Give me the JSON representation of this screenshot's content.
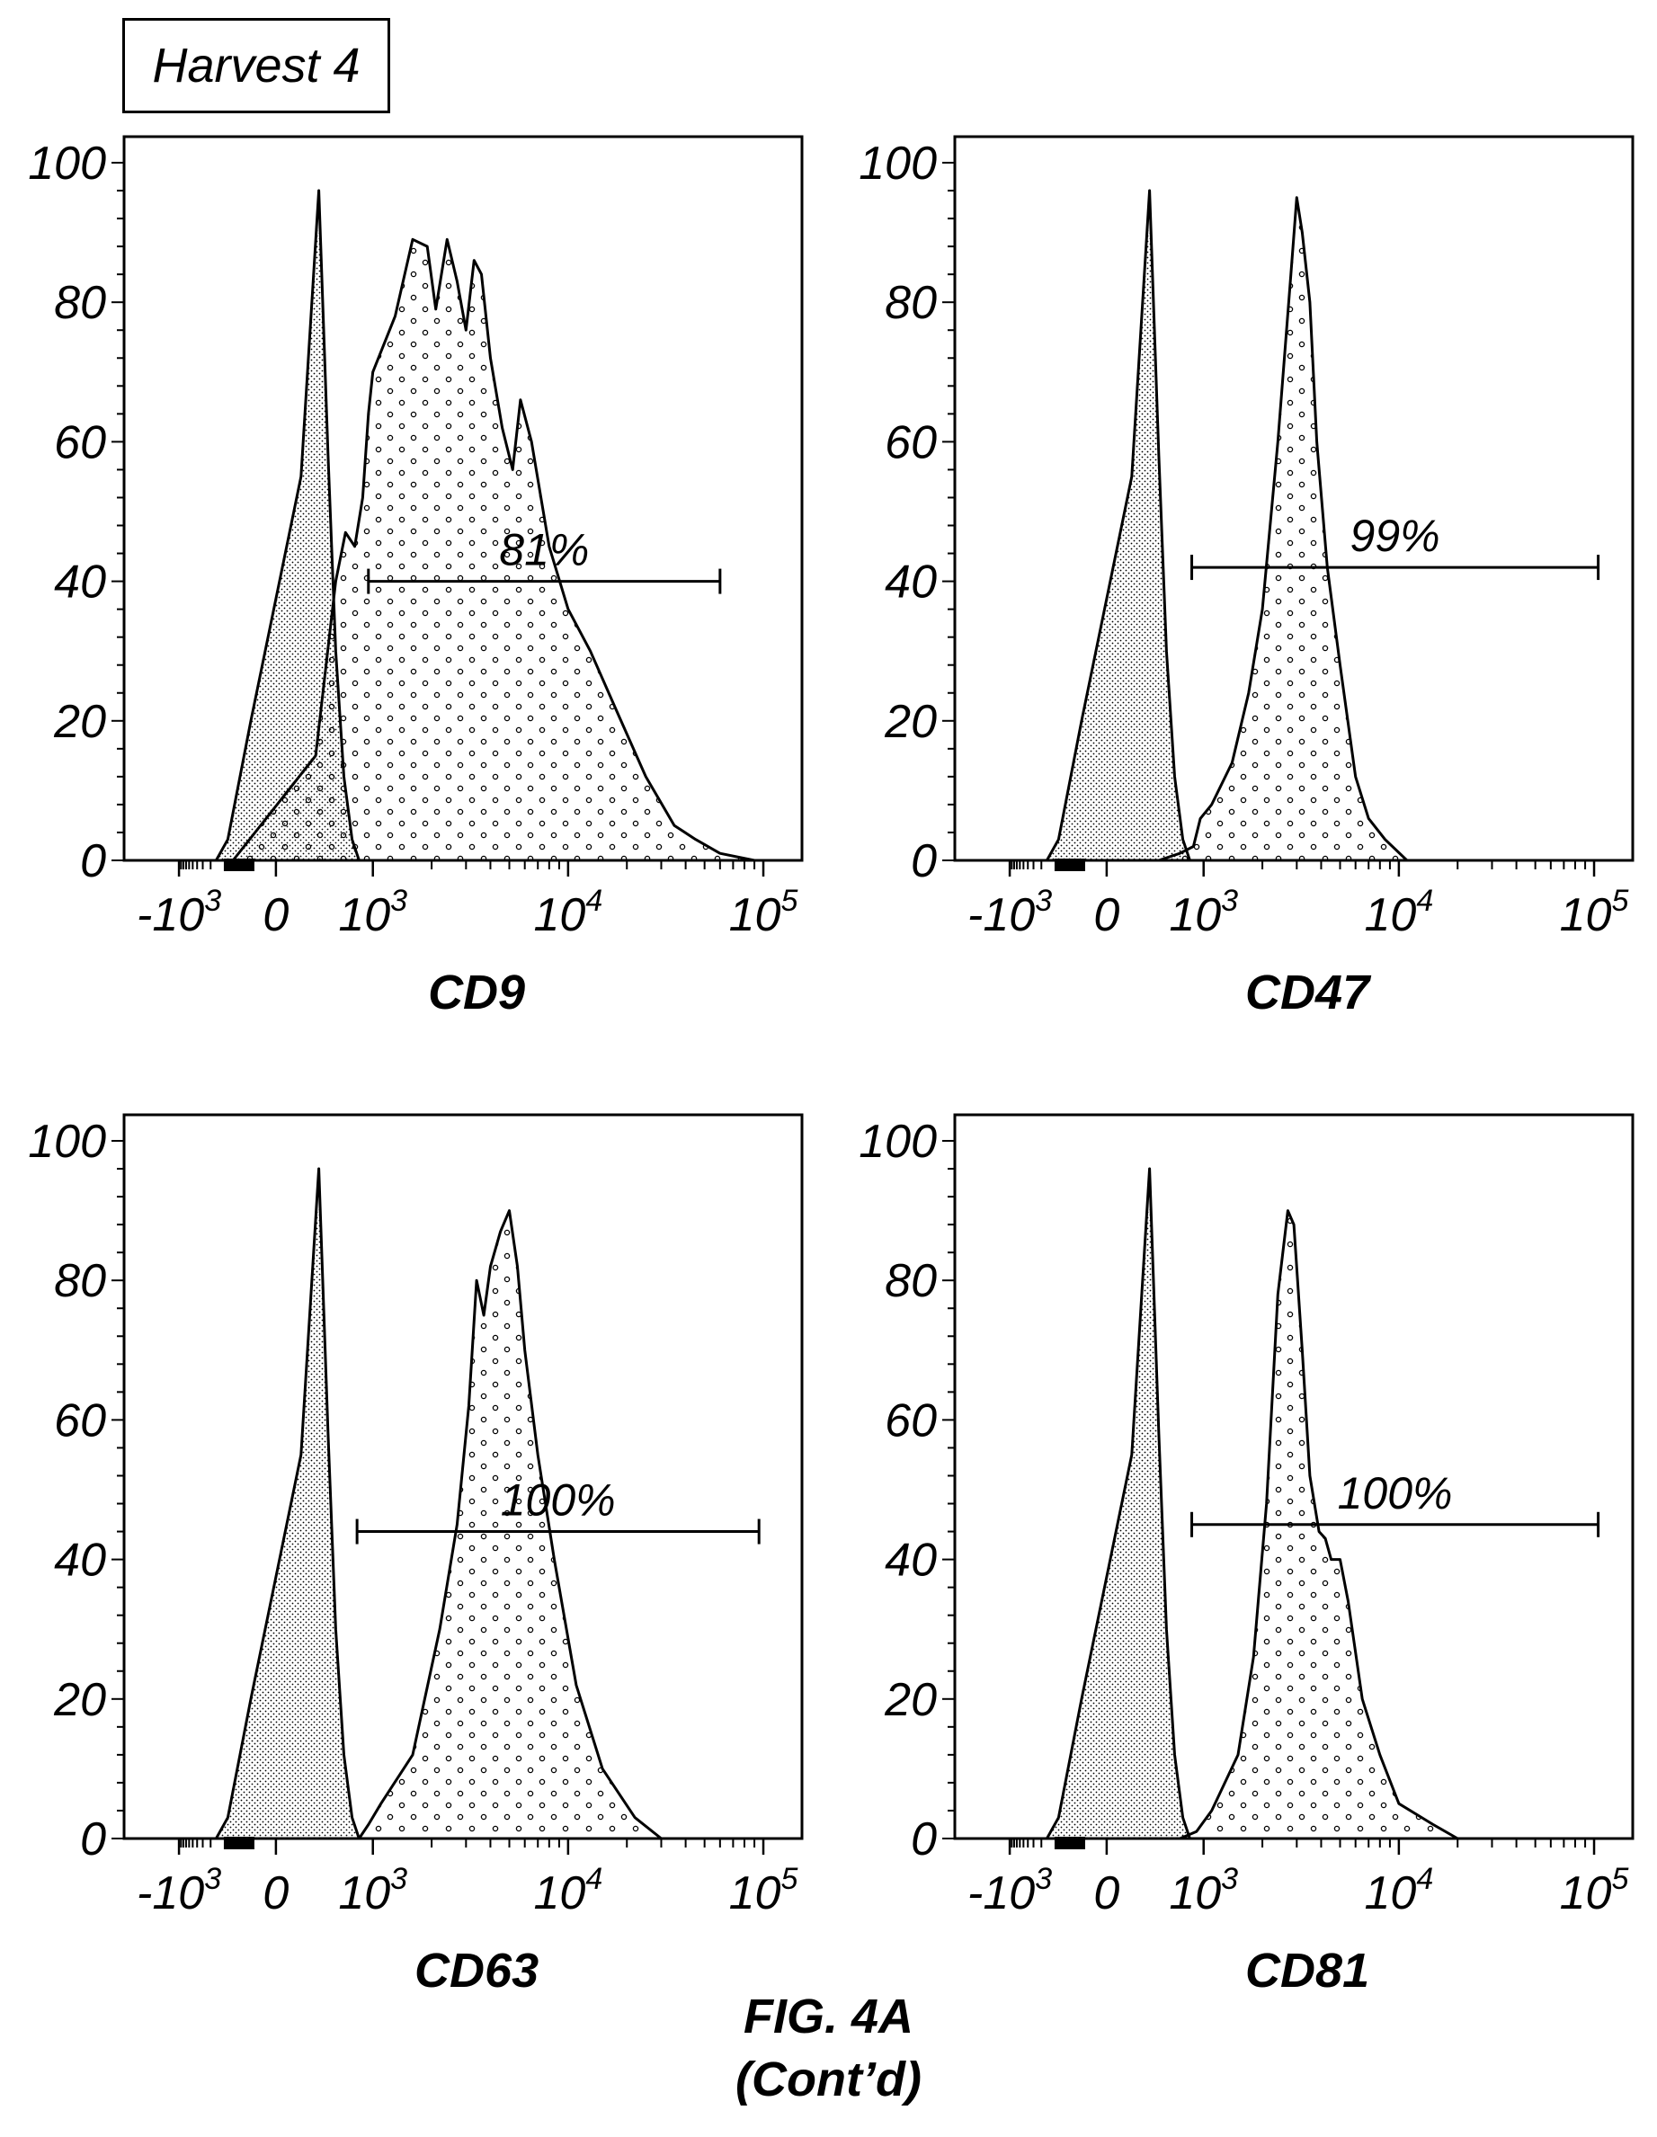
{
  "header": {
    "label": "Harvest 4"
  },
  "caption": {
    "line1": "FIG. 4A",
    "line2": "(Cont’d)"
  },
  "chart_data": [
    {
      "type": "area",
      "xlabel": "CD9",
      "x_scale": "biexponential",
      "x_tick_labels": [
        "-10^3",
        "0",
        "10^3",
        "10^4",
        "10^5"
      ],
      "y_tick_labels": [
        "0",
        "20",
        "40",
        "60",
        "80",
        "100"
      ],
      "ylim": [
        0,
        100
      ],
      "gate": {
        "label": "81%",
        "x_range": [
          800,
          60000
        ]
      },
      "series": [
        {
          "values": [
            [
              -150,
              0
            ],
            [
              -80,
              3
            ],
            [
              -20,
              20
            ],
            [
              20,
              55
            ],
            [
              60,
              96
            ],
            [
              100,
              58
            ],
            [
              150,
              30
            ],
            [
              230,
              12
            ],
            [
              350,
              3
            ],
            [
              500,
              0
            ]
          ]
        },
        {
          "values": [
            [
              -60,
              0
            ],
            [
              50,
              15
            ],
            [
              150,
              40
            ],
            [
              250,
              47
            ],
            [
              400,
              45
            ],
            [
              600,
              52
            ],
            [
              800,
              64
            ],
            [
              1000,
              70
            ],
            [
              1300,
              78
            ],
            [
              1600,
              89
            ],
            [
              1900,
              88
            ],
            [
              2100,
              79
            ],
            [
              2400,
              89
            ],
            [
              2700,
              83
            ],
            [
              3000,
              76
            ],
            [
              3300,
              86
            ],
            [
              3600,
              84
            ],
            [
              4000,
              72
            ],
            [
              4600,
              62
            ],
            [
              5200,
              56
            ],
            [
              5700,
              66
            ],
            [
              6500,
              60
            ],
            [
              8000,
              45
            ],
            [
              10000,
              36
            ],
            [
              13000,
              30
            ],
            [
              18000,
              21
            ],
            [
              25000,
              12
            ],
            [
              35000,
              5
            ],
            [
              45000,
              3
            ],
            [
              60000,
              1
            ],
            [
              90000,
              0
            ]
          ]
        }
      ]
    },
    {
      "type": "area",
      "xlabel": "CD47",
      "x_scale": "biexponential",
      "x_tick_labels": [
        "-10^3",
        "0",
        "10^3",
        "10^4",
        "10^5"
      ],
      "y_tick_labels": [
        "0",
        "20",
        "40",
        "60",
        "80",
        "100"
      ],
      "ylim": [
        0,
        100
      ],
      "gate": {
        "label": "99%",
        "x_range": [
          550,
          105000
        ]
      },
      "series": [
        {
          "values": [
            [
              -150,
              0
            ],
            [
              -80,
              3
            ],
            [
              -20,
              20
            ],
            [
              20,
              55
            ],
            [
              60,
              96
            ],
            [
              100,
              58
            ],
            [
              150,
              30
            ],
            [
              230,
              12
            ],
            [
              350,
              3
            ],
            [
              500,
              0
            ]
          ]
        },
        {
          "values": [
            [
              100,
              0
            ],
            [
              300,
              1
            ],
            [
              600,
              2
            ],
            [
              850,
              6
            ],
            [
              1100,
              8
            ],
            [
              1400,
              14
            ],
            [
              1700,
              24
            ],
            [
              2000,
              36
            ],
            [
              2400,
              60
            ],
            [
              2800,
              84
            ],
            [
              3000,
              95
            ],
            [
              3200,
              90
            ],
            [
              3500,
              80
            ],
            [
              3800,
              60
            ],
            [
              4300,
              42
            ],
            [
              5000,
              28
            ],
            [
              6000,
              12
            ],
            [
              7000,
              6
            ],
            [
              8500,
              3
            ],
            [
              11000,
              0
            ]
          ]
        }
      ]
    },
    {
      "type": "area",
      "xlabel": "CD63",
      "x_scale": "biexponential",
      "x_tick_labels": [
        "-10^3",
        "0",
        "10^3",
        "10^4",
        "10^5"
      ],
      "y_tick_labels": [
        "0",
        "20",
        "40",
        "60",
        "80",
        "100"
      ],
      "ylim": [
        0,
        100
      ],
      "gate": {
        "label": "100%",
        "x_range": [
          450,
          95000
        ]
      },
      "series": [
        {
          "values": [
            [
              -150,
              0
            ],
            [
              -80,
              3
            ],
            [
              -20,
              20
            ],
            [
              20,
              55
            ],
            [
              60,
              96
            ],
            [
              100,
              58
            ],
            [
              150,
              30
            ],
            [
              230,
              12
            ],
            [
              350,
              3
            ],
            [
              500,
              0
            ]
          ]
        },
        {
          "values": [
            [
              500,
              0
            ],
            [
              800,
              2
            ],
            [
              1100,
              5
            ],
            [
              1600,
              12
            ],
            [
              2200,
              30
            ],
            [
              2700,
              45
            ],
            [
              3100,
              62
            ],
            [
              3400,
              80
            ],
            [
              3700,
              75
            ],
            [
              4000,
              82
            ],
            [
              4500,
              87
            ],
            [
              5000,
              90
            ],
            [
              5500,
              82
            ],
            [
              6000,
              70
            ],
            [
              7000,
              55
            ],
            [
              8500,
              40
            ],
            [
              11000,
              22
            ],
            [
              15000,
              10
            ],
            [
              22000,
              3
            ],
            [
              30000,
              0
            ]
          ]
        }
      ]
    },
    {
      "type": "area",
      "xlabel": "CD81",
      "x_scale": "biexponential",
      "x_tick_labels": [
        "-10^3",
        "0",
        "10^3",
        "10^4",
        "10^5"
      ],
      "y_tick_labels": [
        "0",
        "20",
        "40",
        "60",
        "80",
        "100"
      ],
      "ylim": [
        0,
        100
      ],
      "gate": {
        "label": "100%",
        "x_range": [
          550,
          105000
        ]
      },
      "series": [
        {
          "values": [
            [
              -150,
              0
            ],
            [
              -80,
              3
            ],
            [
              -20,
              20
            ],
            [
              20,
              55
            ],
            [
              60,
              96
            ],
            [
              100,
              58
            ],
            [
              150,
              30
            ],
            [
              230,
              12
            ],
            [
              350,
              3
            ],
            [
              500,
              0
            ]
          ]
        },
        {
          "values": [
            [
              300,
              0
            ],
            [
              700,
              1
            ],
            [
              1100,
              4
            ],
            [
              1500,
              12
            ],
            [
              1800,
              26
            ],
            [
              2100,
              48
            ],
            [
              2400,
              78
            ],
            [
              2700,
              90
            ],
            [
              2900,
              88
            ],
            [
              3200,
              70
            ],
            [
              3500,
              52
            ],
            [
              3900,
              44
            ],
            [
              4200,
              43
            ],
            [
              4500,
              40
            ],
            [
              5000,
              40
            ],
            [
              5500,
              34
            ],
            [
              6500,
              20
            ],
            [
              8000,
              12
            ],
            [
              10000,
              5
            ],
            [
              15000,
              2
            ],
            [
              20000,
              0
            ]
          ]
        }
      ]
    }
  ]
}
